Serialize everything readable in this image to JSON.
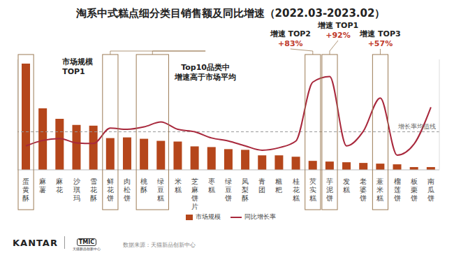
{
  "chart_data": {
    "type": "bar",
    "title": "淘系中式糕点细分类目销售额及同比增速（2022.03-2023.02）",
    "categories": [
      "蛋黄酥",
      "麻薯",
      "麻花",
      "沙琪玛",
      "雪花酥",
      "鲜花饼",
      "肉松饼",
      "桃酥",
      "绿豆糕",
      "米糕",
      "芝麻饼片",
      "枣糕",
      "绿豆饼",
      "凤梨酥",
      "青团",
      "糍粑",
      "桂花糕",
      "芡实糕",
      "芋泥饼",
      "发糕",
      "老婆饼",
      "薏米糕",
      "榴莲饼",
      "板栗饼",
      "南瓜饼"
    ],
    "series": [
      {
        "name": "市场规模",
        "type": "bar",
        "color": "#b5461b",
        "values": [
          154,
          89,
          74,
          65,
          64,
          46,
          47,
          45,
          42,
          41,
          34,
          33,
          30,
          29,
          21,
          21,
          19,
          13,
          12,
          11,
          10,
          9,
          8,
          4,
          4
        ]
      },
      {
        "name": "同比增长率",
        "type": "line",
        "color": "#a8283c",
        "axis": "y2",
        "line_style": "smooth",
        "marker": "none",
        "values": [
          -21,
          -12,
          -9,
          -16,
          -17,
          8,
          6,
          10,
          18,
          6,
          2,
          -8,
          -13,
          -21,
          -28,
          -24,
          -13,
          83,
          92,
          -21,
          3,
          57,
          -36,
          -18,
          42
        ]
      }
    ],
    "ylim": [
      0,
      160
    ],
    "y2lim": [
      -60,
      120
    ],
    "tick_labels": "x",
    "grid": false,
    "legend": "bottom",
    "reference_line": {
      "value": 2,
      "label": "增长率均值线",
      "axis": "y2"
    },
    "annotations": [
      {
        "lines": [
          "市场规模",
          "TOP1"
        ],
        "categories": [
          0
        ]
      },
      {
        "lines": [
          "Top10品类中",
          "增速高于市场平均"
        ],
        "categories": [
          5,
          7,
          8
        ]
      },
      {
        "lines": [
          "增速 TOP2",
          "+83%"
        ],
        "categories": [
          17
        ]
      },
      {
        "lines": [
          "增速 TOP1",
          "+92%"
        ],
        "categories": [
          18
        ]
      },
      {
        "lines": [
          "增速 TOP3",
          "+57%"
        ],
        "categories": [
          21
        ]
      }
    ],
    "source": "数据来源：天猫新品创新中心",
    "logos": [
      "KANTAR",
      "TMIC",
      "天猫新品创新中心"
    ]
  }
}
